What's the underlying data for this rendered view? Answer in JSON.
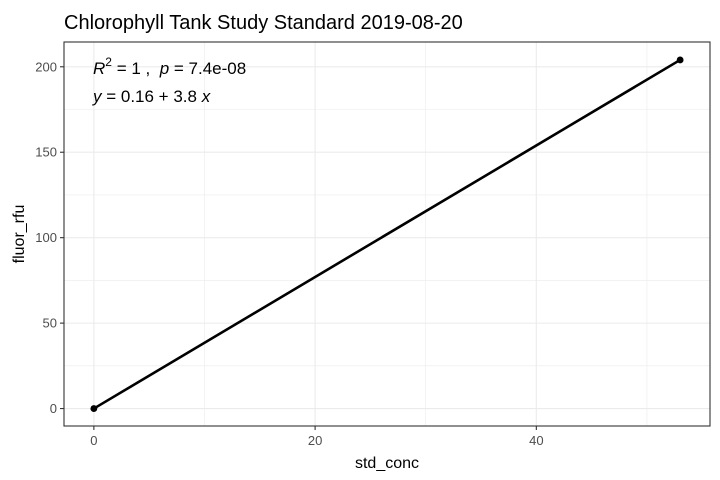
{
  "chart_data": {
    "type": "scatter",
    "title": "Chlorophyll Tank Study Standard 2019-08-20",
    "xlabel": "std_conc",
    "ylabel": "fluor_rfu",
    "xlim": [
      -2.7,
      55.7
    ],
    "ylim": [
      -10.2,
      214.5
    ],
    "x_ticks": [
      0,
      20,
      40
    ],
    "y_ticks": [
      0,
      50,
      100,
      150,
      200
    ],
    "grid": true,
    "series": [
      {
        "points": [
          {
            "x": 0,
            "y": 0
          },
          {
            "x": 53,
            "y": 204
          }
        ]
      }
    ],
    "fit_line": {
      "intercept": 0.16,
      "slope": 3.8
    },
    "annotations": {
      "line1_r": "R",
      "line1_r_sup": "2",
      "line1_rest_a": " = 1 ,  ",
      "line1_p": "p",
      "line1_rest_b": " = 7.4e-08",
      "line2_y": "y",
      "line2_rest": " = 0.16 + 3.8 ",
      "line2_x": "x"
    },
    "colors": {
      "background": "#ffffff",
      "grid": "#ebebeb",
      "panel_border": "#333333",
      "points_line": "#000000"
    }
  }
}
